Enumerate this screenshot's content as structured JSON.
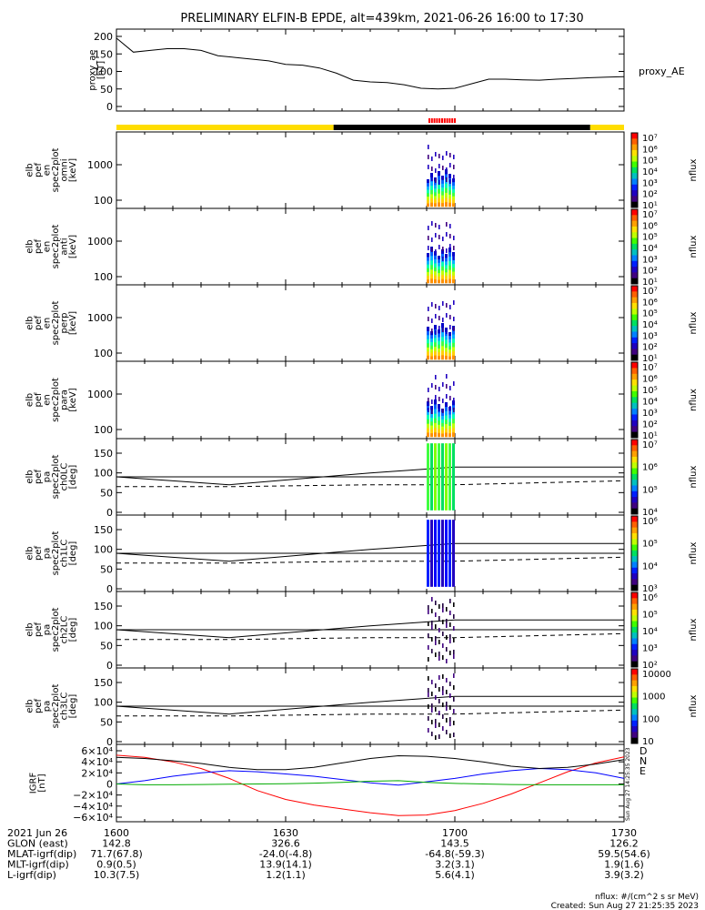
{
  "title": "PRELIMINARY ELFIN-B EPDE, alt=439km, 2021-06-26 16:00 to 17:30",
  "chart_data": [
    {
      "id": "proxy_ae",
      "type": "line",
      "ylabel_lines": [
        "proxy_ae",
        "[nT]"
      ],
      "legend": "proxy_AE",
      "ylim": [
        0,
        200
      ],
      "yticks": [
        "200",
        "150",
        "100",
        "50",
        "0"
      ],
      "x": [
        "16:00",
        "16:03",
        "16:06",
        "16:09",
        "16:12",
        "16:15",
        "16:18",
        "16:21",
        "16:24",
        "16:27",
        "16:30",
        "16:33",
        "16:36",
        "16:39",
        "16:42",
        "16:45",
        "16:48",
        "16:51",
        "16:54",
        "16:57",
        "17:00",
        "17:03",
        "17:06",
        "17:09",
        "17:12",
        "17:15",
        "17:18",
        "17:21",
        "17:24",
        "17:27",
        "17:30"
      ],
      "values": [
        195,
        155,
        160,
        165,
        165,
        160,
        145,
        140,
        135,
        130,
        120,
        118,
        110,
        95,
        75,
        70,
        68,
        62,
        52,
        50,
        52,
        65,
        78,
        78,
        76,
        75,
        78,
        80,
        82,
        84,
        85
      ]
    },
    {
      "id": "spec_omni",
      "type": "heatmap",
      "ylabel_lines": [
        "elb",
        "pef",
        "en",
        "spec2plot",
        "omni",
        "[keV]"
      ],
      "yticks": [
        "1000",
        "100"
      ],
      "colorbar": {
        "label": "nflux",
        "ticks": [
          "10⁷",
          "10⁶",
          "10⁵",
          "10⁴",
          "10³",
          "10²",
          "10¹"
        ]
      }
    },
    {
      "id": "spec_anti",
      "type": "heatmap",
      "ylabel_lines": [
        "elb",
        "pef",
        "en",
        "spec2plot",
        "anti",
        "[keV]"
      ],
      "yticks": [
        "1000",
        "100"
      ],
      "colorbar": {
        "label": "nflux",
        "ticks": [
          "10⁷",
          "10⁶",
          "10⁵",
          "10⁴",
          "10³",
          "10²",
          "10¹"
        ]
      }
    },
    {
      "id": "spec_perp",
      "type": "heatmap",
      "ylabel_lines": [
        "elb",
        "pef",
        "en",
        "spec2plot",
        "perp",
        "[keV]"
      ],
      "yticks": [
        "1000",
        "100"
      ],
      "colorbar": {
        "label": "nflux",
        "ticks": [
          "10⁷",
          "10⁶",
          "10⁵",
          "10⁴",
          "10³",
          "10²",
          "10¹"
        ]
      }
    },
    {
      "id": "spec_para",
      "type": "heatmap",
      "ylabel_lines": [
        "elb",
        "pef",
        "en",
        "spec2plot",
        "para",
        "[keV]"
      ],
      "yticks": [
        "1000",
        "100"
      ],
      "colorbar": {
        "label": "nflux",
        "ticks": [
          "10⁷",
          "10⁶",
          "10⁵",
          "10⁴",
          "10³",
          "10²",
          "10¹"
        ]
      }
    },
    {
      "id": "pa_ch0",
      "type": "heatmap",
      "ylabel_lines": [
        "elb",
        "pef",
        "pa",
        "spec2plot",
        "ch0LC",
        "[deg]"
      ],
      "yticks": [
        "150",
        "100",
        "50",
        "0"
      ],
      "colorbar": {
        "label": "nflux",
        "ticks": [
          "10⁷",
          "10⁶",
          "10⁵",
          "10⁴"
        ]
      }
    },
    {
      "id": "pa_ch1",
      "type": "heatmap",
      "ylabel_lines": [
        "elb",
        "pef",
        "pa",
        "spec2plot",
        "ch1LC",
        "[deg]"
      ],
      "yticks": [
        "150",
        "100",
        "50",
        "0"
      ],
      "colorbar": {
        "label": "nflux",
        "ticks": [
          "10⁶",
          "10⁵",
          "10⁴",
          "10³"
        ]
      }
    },
    {
      "id": "pa_ch2",
      "type": "heatmap",
      "ylabel_lines": [
        "elb",
        "pef",
        "pa",
        "spec2plot",
        "ch2LC",
        "[deg]"
      ],
      "yticks": [
        "150",
        "100",
        "50",
        "0"
      ],
      "colorbar": {
        "label": "nflux",
        "ticks": [
          "10⁶",
          "10⁵",
          "10⁴",
          "10³",
          "10²"
        ]
      }
    },
    {
      "id": "pa_ch3",
      "type": "heatmap",
      "ylabel_lines": [
        "elb",
        "pef",
        "pa",
        "spec2plot",
        "ch3LC",
        "[deg]"
      ],
      "yticks": [
        "150",
        "100",
        "50",
        "0"
      ],
      "colorbar": {
        "label": "nflux",
        "ticks": [
          "10000",
          "1000",
          "100",
          "10"
        ]
      }
    },
    {
      "id": "igrf",
      "type": "line",
      "ylabel_lines": [
        "IGRF",
        "[nT]"
      ],
      "ylim": [
        -60000,
        60000
      ],
      "yticks": [
        "6×10⁴",
        "4×10⁴",
        "2×10⁴",
        "0",
        "−2×10⁴",
        "−4×10⁴",
        "−6×10⁴"
      ],
      "x_minutes": [
        0,
        5,
        10,
        15,
        20,
        25,
        30,
        35,
        40,
        45,
        50,
        55,
        60,
        65,
        70,
        75,
        80,
        85,
        90
      ],
      "series": [
        {
          "name": "D",
          "color": "#ff0000",
          "values": [
            52000,
            48000,
            40000,
            28000,
            10000,
            -12000,
            -28000,
            -38000,
            -45000,
            -52000,
            -57000,
            -56000,
            -48000,
            -35000,
            -18000,
            2000,
            22000,
            38000,
            49000
          ]
        },
        {
          "name": "N",
          "color": "#0000ff",
          "values": [
            0,
            6000,
            14000,
            20000,
            24000,
            22000,
            18000,
            14000,
            8000,
            2000,
            -2000,
            4000,
            10000,
            18000,
            24000,
            28000,
            26000,
            20000,
            10000
          ]
        },
        {
          "name": "E",
          "color": "#00aa00",
          "values": [
            0,
            -1500,
            -1500,
            -1000,
            -500,
            0,
            500,
            1500,
            3000,
            5000,
            6000,
            3000,
            1000,
            0,
            -1000,
            -1500,
            -1500,
            -1500,
            -1500
          ]
        },
        {
          "color": "#000000",
          "values": [
            48000,
            46000,
            42000,
            37000,
            30000,
            26000,
            26000,
            30000,
            38000,
            46000,
            51000,
            50000,
            46000,
            40000,
            32000,
            28000,
            30000,
            36000,
            44000
          ]
        }
      ],
      "legend": [
        "D",
        "N",
        "E"
      ]
    }
  ],
  "bars": {
    "yellow": "#ffdd00",
    "black": "#000000",
    "red": "#ff0000"
  },
  "xaxis": {
    "rows": [
      {
        "label": "2021 Jun 26",
        "values": [
          "1600",
          "1630",
          "1700",
          "1730"
        ]
      },
      {
        "label": "GLON (east)",
        "values": [
          "142.8",
          "326.6",
          "143.5",
          "126.2"
        ]
      },
      {
        "label": "MLAT-igrf(dip)",
        "values": [
          "71.7(67.8)",
          "-24.0(-4.8)",
          "-64.8(-59.3)",
          "59.5(54.6)"
        ]
      },
      {
        "label": "MLT-igrf(dip)",
        "values": [
          "0.9(0.5)",
          "13.9(14.1)",
          "3.2(3.1)",
          "1.9(1.6)"
        ]
      },
      {
        "label": "L-igrf(dip)",
        "values": [
          "10.3(7.5)",
          "1.2(1.1)",
          "5.6(4.1)",
          "3.9(3.2)"
        ]
      }
    ]
  },
  "footer": {
    "units": "nflux: #/(cm^2 s sr MeV)",
    "created": "Created: Sun Aug 27 21:25:35 2023",
    "side_stamp": "Sun Aug 27 14:25:35 2023"
  }
}
